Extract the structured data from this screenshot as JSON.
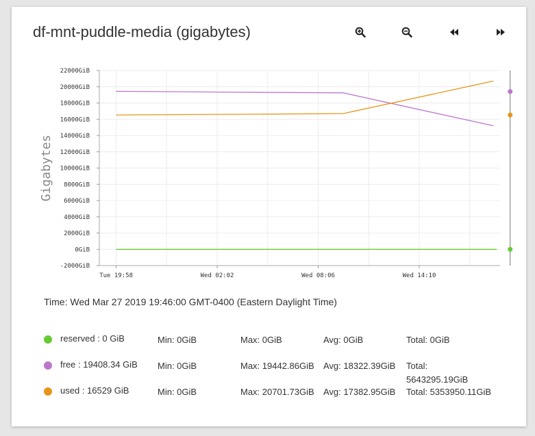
{
  "title": "df-mnt-puddle-media (gigabytes)",
  "toolbar": {
    "zoom_in_icon": "zoom-in-icon",
    "zoom_out_icon": "zoom-out-icon",
    "back_icon": "rewind-icon",
    "forward_icon": "fast-forward-icon"
  },
  "chart_data": {
    "type": "line",
    "ylabel": "Gigabytes",
    "ylim": [
      -2000,
      22000
    ],
    "y_ticks": [
      "22000GiB",
      "20000GiB",
      "18000GiB",
      "16000GiB",
      "14000GiB",
      "12000GiB",
      "10000GiB",
      "8000GiB",
      "6000GiB",
      "4000GiB",
      "2000GiB",
      "0GiB",
      "-2000GiB"
    ],
    "x_ticks": [
      "Tue 19:58",
      "Wed 02:02",
      "Wed 08:06",
      "Wed 14:10"
    ],
    "x_range_hours": [
      -1.0,
      22.8
    ],
    "series": [
      {
        "name": "reserved",
        "color": "#66cc33",
        "x_hours": [
          0,
          22.6
        ],
        "values": [
          0,
          0
        ]
      },
      {
        "name": "free",
        "color": "#bb77cc",
        "x_hours": [
          0,
          6,
          13.5,
          22.4
        ],
        "values": [
          19442.86,
          19350,
          19250,
          15200
        ]
      },
      {
        "name": "used",
        "color": "#e8951a",
        "x_hours": [
          0,
          8,
          13.5,
          22.4
        ],
        "values": [
          16530,
          16620,
          16700,
          20701.73
        ]
      }
    ],
    "markers": [
      {
        "series": "free",
        "value": 19408.34,
        "color": "#bb77cc"
      },
      {
        "series": "used",
        "value": 16529,
        "color": "#e8951a"
      },
      {
        "series": "reserved",
        "value": 0,
        "color": "#66cc33"
      }
    ],
    "cursor_hours": 23.4
  },
  "time_label": "Time: Wed Mar 27 2019 19:46:00 GMT-0400 (Eastern Daylight Time)",
  "legend": [
    {
      "name": "reserved : 0 GiB",
      "color": "#66cc33",
      "min": "Min: 0GiB",
      "max": "Max: 0GiB",
      "avg": "Avg: 0GiB",
      "total": "Total: 0GiB"
    },
    {
      "name": "free : 19408.34 GiB",
      "color": "#bb77cc",
      "min": "Min: 0GiB",
      "max": "Max: 19442.86GiB",
      "avg": "Avg: 18322.39GiB",
      "total": "Total: 5643295.19GiB"
    },
    {
      "name": "used : 16529 GiB",
      "color": "#e8951a",
      "min": "Min: 0GiB",
      "max": "Max: 20701.73GiB",
      "avg": "Avg: 17382.95GiB",
      "total": "Total: 5353950.11GiB"
    }
  ]
}
